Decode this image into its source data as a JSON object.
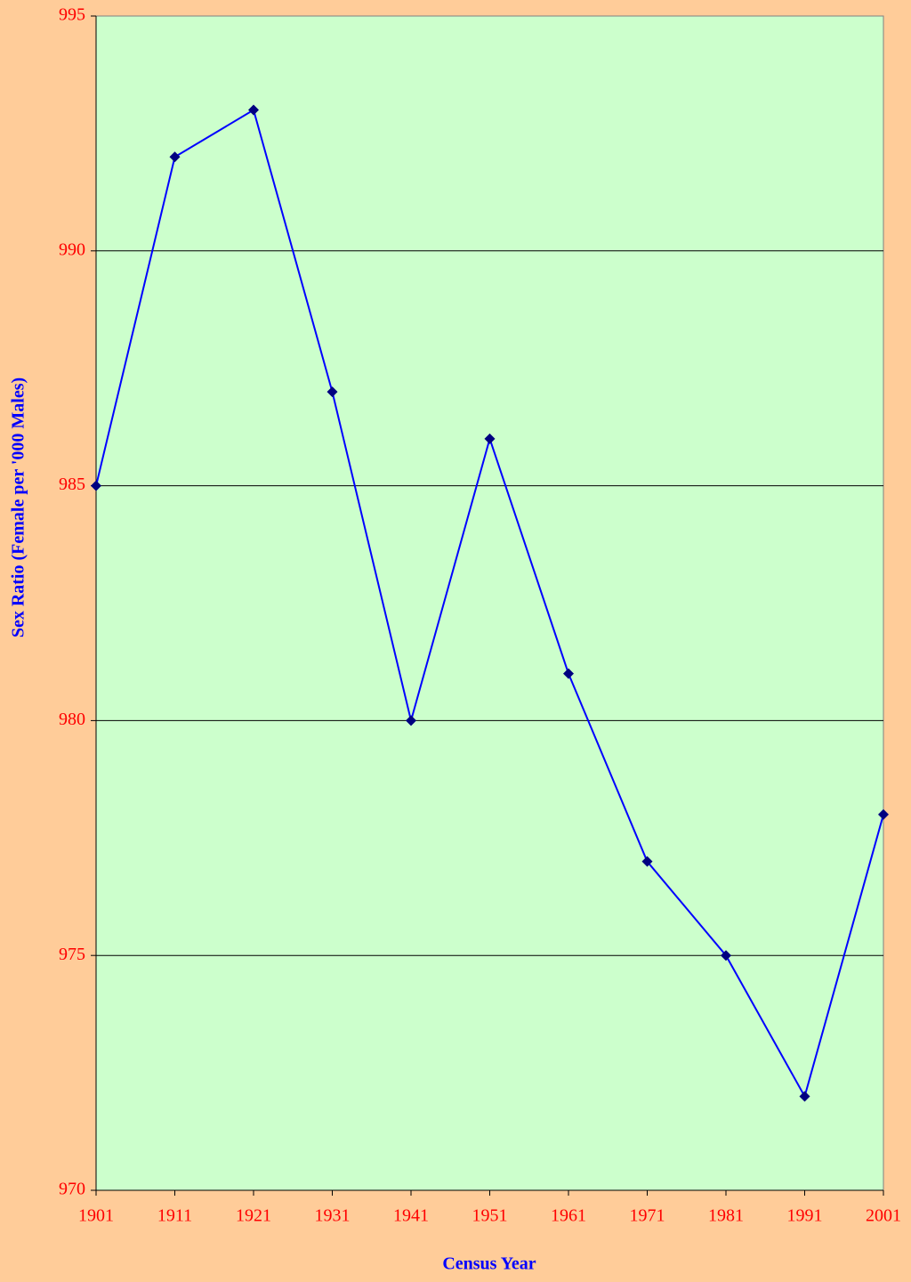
{
  "chart_data": {
    "type": "line",
    "x_label": "Census Year",
    "y_label": "Sex Ratio (Female per '000 Males)",
    "x": [
      1901,
      1911,
      1921,
      1931,
      1941,
      1951,
      1961,
      1971,
      1981,
      1991,
      2001
    ],
    "values": [
      985,
      992,
      993,
      987,
      980,
      986,
      981,
      977,
      975,
      972,
      978
    ],
    "color": "#0000ff",
    "marker_color": "#000080",
    "xlim": [
      1901,
      2001
    ],
    "xticks": [
      1901,
      1911,
      1921,
      1931,
      1941,
      1951,
      1961,
      1971,
      1981,
      1991,
      2001
    ],
    "ylim": [
      970,
      995
    ],
    "yticks": [
      970,
      975,
      980,
      985,
      990,
      995
    ],
    "grid": true,
    "plot_background": "#ccffcc"
  }
}
